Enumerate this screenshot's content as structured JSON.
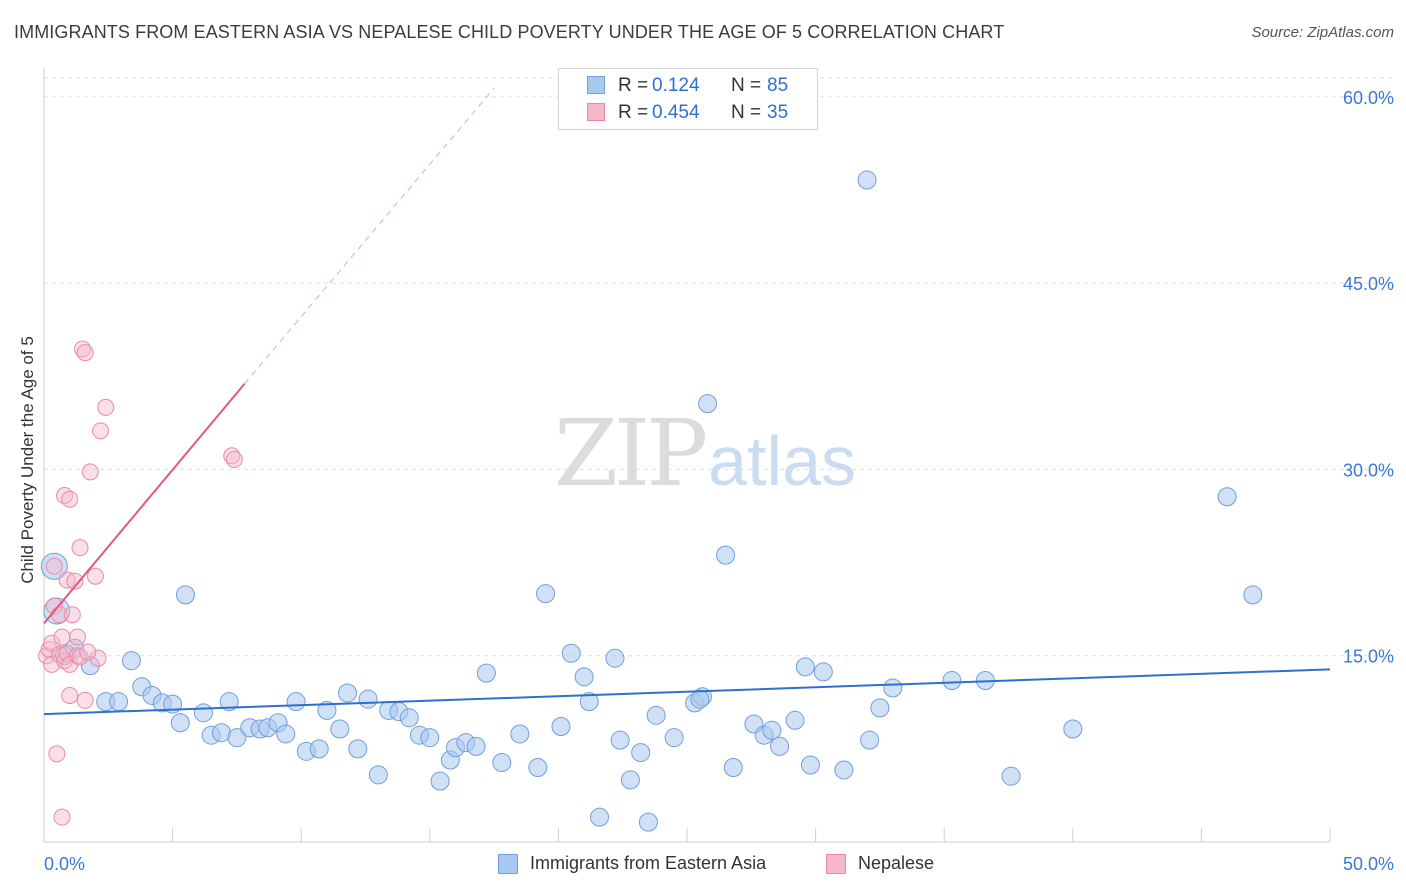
{
  "title": "IMMIGRANTS FROM EASTERN ASIA VS NEPALESE CHILD POVERTY UNDER THE AGE OF 5 CORRELATION CHART",
  "source": "Source: ZipAtlas.com",
  "watermark": {
    "zip": "ZIP",
    "atlas": "atlas"
  },
  "legend_top": [
    {
      "r_label": "R =",
      "r_value": "0.124",
      "n_label": "N =",
      "n_value": "85"
    },
    {
      "r_label": "R =",
      "r_value": "0.454",
      "n_label": "N =",
      "n_value": "35"
    }
  ],
  "chart_data": {
    "type": "scatter",
    "title": "IMMIGRANTS FROM EASTERN ASIA VS NEPALESE CHILD POVERTY UNDER THE AGE OF 5 CORRELATION CHART",
    "xlabel": "",
    "ylabel": "Child Poverty Under the Age of 5",
    "xlim": [
      0,
      50
    ],
    "ylim": [
      0,
      62
    ],
    "x_tick_labels": [
      "0.0%",
      "50.0%"
    ],
    "y_ticks": [
      15,
      30,
      45,
      60
    ],
    "y_tick_labels": [
      "15.0%",
      "30.0%",
      "45.0%",
      "60.0%"
    ],
    "grid": true,
    "legend_position": "bottom",
    "colors": {
      "blue_fill": "#a9c8ef",
      "blue_edge": "#6f9fdc",
      "blue_line": "#2f6fcf",
      "pink_fill": "#f6b8c9",
      "pink_edge": "#e88aa6",
      "pink_line": "#e0587f",
      "tick_text": "#3b78d4"
    },
    "series": [
      {
        "name": "Immigrants from Eastern Asia",
        "trend": {
          "x": [
            0,
            50
          ],
          "y": [
            10.3,
            13.9
          ]
        },
        "points": [
          [
            0.4,
            22.2
          ],
          [
            0.5,
            18.6
          ],
          [
            0.8,
            15.0
          ],
          [
            1.2,
            15.6
          ],
          [
            1.8,
            14.2
          ],
          [
            2.4,
            11.3
          ],
          [
            2.9,
            11.3
          ],
          [
            3.4,
            14.6
          ],
          [
            3.8,
            12.5
          ],
          [
            4.2,
            11.8
          ],
          [
            4.6,
            11.2
          ],
          [
            5.0,
            11.1
          ],
          [
            5.3,
            9.6
          ],
          [
            5.5,
            19.9
          ],
          [
            6.2,
            10.4
          ],
          [
            6.5,
            8.6
          ],
          [
            6.9,
            8.8
          ],
          [
            7.2,
            11.3
          ],
          [
            7.5,
            8.4
          ],
          [
            8.0,
            9.2
          ],
          [
            8.4,
            9.1
          ],
          [
            8.7,
            9.2
          ],
          [
            9.1,
            9.6
          ],
          [
            9.4,
            8.7
          ],
          [
            9.8,
            11.3
          ],
          [
            10.2,
            7.3
          ],
          [
            10.7,
            7.5
          ],
          [
            11.0,
            10.6
          ],
          [
            11.5,
            9.1
          ],
          [
            11.8,
            12.0
          ],
          [
            12.2,
            7.5
          ],
          [
            12.6,
            11.5
          ],
          [
            13.0,
            5.4
          ],
          [
            13.4,
            10.6
          ],
          [
            13.8,
            10.5
          ],
          [
            14.2,
            10.0
          ],
          [
            14.6,
            8.6
          ],
          [
            15.0,
            8.4
          ],
          [
            15.4,
            4.9
          ],
          [
            15.8,
            6.6
          ],
          [
            16.0,
            7.6
          ],
          [
            16.4,
            8.0
          ],
          [
            16.8,
            7.7
          ],
          [
            17.2,
            13.6
          ],
          [
            17.8,
            6.4
          ],
          [
            18.5,
            8.7
          ],
          [
            19.2,
            6.0
          ],
          [
            19.5,
            20.0
          ],
          [
            20.1,
            9.3
          ],
          [
            20.5,
            15.2
          ],
          [
            21.0,
            13.3
          ],
          [
            21.2,
            11.3
          ],
          [
            21.6,
            2.0
          ],
          [
            22.2,
            14.8
          ],
          [
            22.4,
            8.2
          ],
          [
            22.8,
            5.0
          ],
          [
            23.2,
            7.2
          ],
          [
            23.5,
            1.6
          ],
          [
            23.8,
            10.2
          ],
          [
            24.5,
            8.4
          ],
          [
            25.3,
            11.2
          ],
          [
            25.6,
            11.7
          ],
          [
            25.8,
            35.3
          ],
          [
            26.5,
            23.1
          ],
          [
            26.8,
            6.0
          ],
          [
            27.6,
            9.5
          ],
          [
            28.0,
            8.6
          ],
          [
            28.3,
            9.0
          ],
          [
            28.6,
            7.7
          ],
          [
            29.2,
            9.8
          ],
          [
            29.6,
            14.1
          ],
          [
            29.8,
            6.2
          ],
          [
            30.3,
            13.7
          ],
          [
            31.1,
            5.8
          ],
          [
            32.0,
            53.3
          ],
          [
            32.1,
            8.2
          ],
          [
            32.5,
            10.8
          ],
          [
            33.0,
            12.4
          ],
          [
            35.3,
            13.0
          ],
          [
            36.6,
            13.0
          ],
          [
            37.6,
            5.3
          ],
          [
            40.0,
            9.1
          ],
          [
            46.0,
            27.8
          ],
          [
            47.0,
            19.9
          ],
          [
            25.5,
            11.5
          ]
        ]
      },
      {
        "name": "Nepalese",
        "trend": {
          "x": [
            0,
            7.8
          ],
          "y": [
            17.6,
            36.9
          ]
        },
        "trend_dashed": {
          "x": [
            7.8,
            17.5
          ],
          "y": [
            36.9,
            60.7
          ]
        },
        "points": [
          [
            0.1,
            15.0
          ],
          [
            0.2,
            15.5
          ],
          [
            0.3,
            14.3
          ],
          [
            0.3,
            16.0
          ],
          [
            0.4,
            22.2
          ],
          [
            0.4,
            19.0
          ],
          [
            0.5,
            7.1
          ],
          [
            0.6,
            15.1
          ],
          [
            0.6,
            18.3
          ],
          [
            0.7,
            16.5
          ],
          [
            0.7,
            2.0
          ],
          [
            0.8,
            14.6
          ],
          [
            0.8,
            27.9
          ],
          [
            0.9,
            15.2
          ],
          [
            0.9,
            21.1
          ],
          [
            1.0,
            11.8
          ],
          [
            1.0,
            27.6
          ],
          [
            1.0,
            14.3
          ],
          [
            1.1,
            18.3
          ],
          [
            1.2,
            21.0
          ],
          [
            1.3,
            15.0
          ],
          [
            1.3,
            16.5
          ],
          [
            1.4,
            23.7
          ],
          [
            1.4,
            14.9
          ],
          [
            1.5,
            39.7
          ],
          [
            1.6,
            39.4
          ],
          [
            1.6,
            11.4
          ],
          [
            1.8,
            29.8
          ],
          [
            2.0,
            21.4
          ],
          [
            2.1,
            14.8
          ],
          [
            2.2,
            33.1
          ],
          [
            2.4,
            35.0
          ],
          [
            7.3,
            31.1
          ],
          [
            7.4,
            30.8
          ],
          [
            1.7,
            15.3
          ]
        ]
      }
    ]
  },
  "legend_bottom": {
    "items": [
      "Immigrants from Eastern Asia",
      "Nepalese"
    ]
  }
}
